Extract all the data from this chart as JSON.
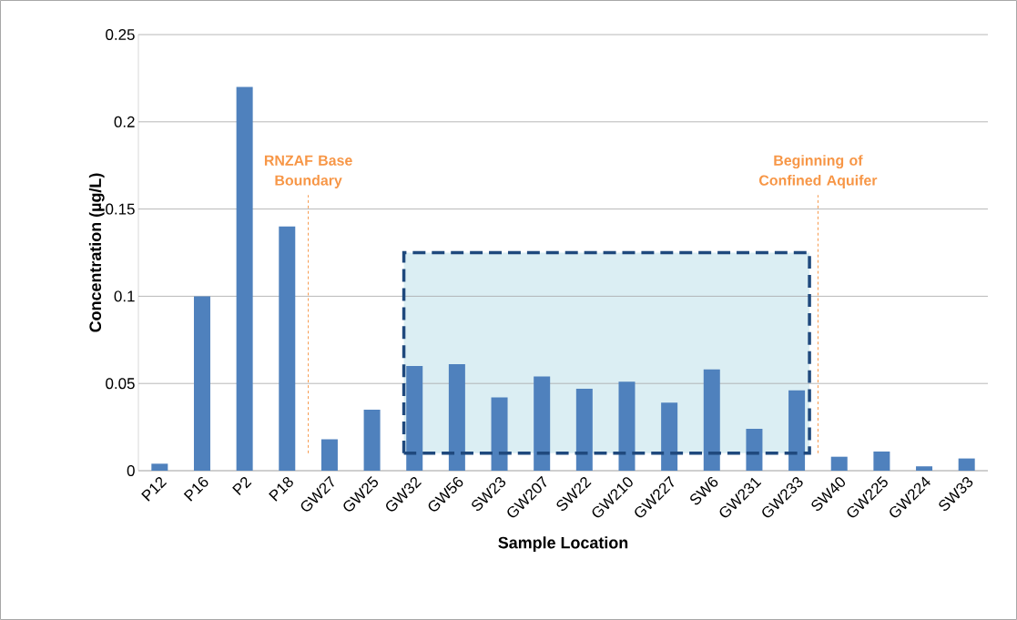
{
  "chart_data": {
    "type": "bar",
    "xlabel": "Sample Location",
    "ylabel": "Concentration (µg/L)",
    "categories": [
      "P12",
      "P16",
      "P2",
      "P18",
      "GW27",
      "GW25",
      "GW32",
      "GW56",
      "SW23",
      "GW207",
      "SW22",
      "GW210",
      "GW227",
      "SW6",
      "GW231",
      "GW233",
      "SW40",
      "GW225",
      "GW224",
      "SW33"
    ],
    "values": [
      0.004,
      0.1,
      0.22,
      0.14,
      0.018,
      0.035,
      0.06,
      0.061,
      0.042,
      0.054,
      0.047,
      0.051,
      0.039,
      0.058,
      0.024,
      0.046,
      0.008,
      0.011,
      0.0025,
      0.007
    ],
    "color": "#4f81bd",
    "ylim": [
      0,
      0.25
    ],
    "yticks": [
      0,
      0.05,
      0.1,
      0.15,
      0.2,
      0.25
    ],
    "grid": "y",
    "annotations": [
      "RNZAF Base Boundary",
      "Beginning of Confined Aquifer"
    ]
  }
}
